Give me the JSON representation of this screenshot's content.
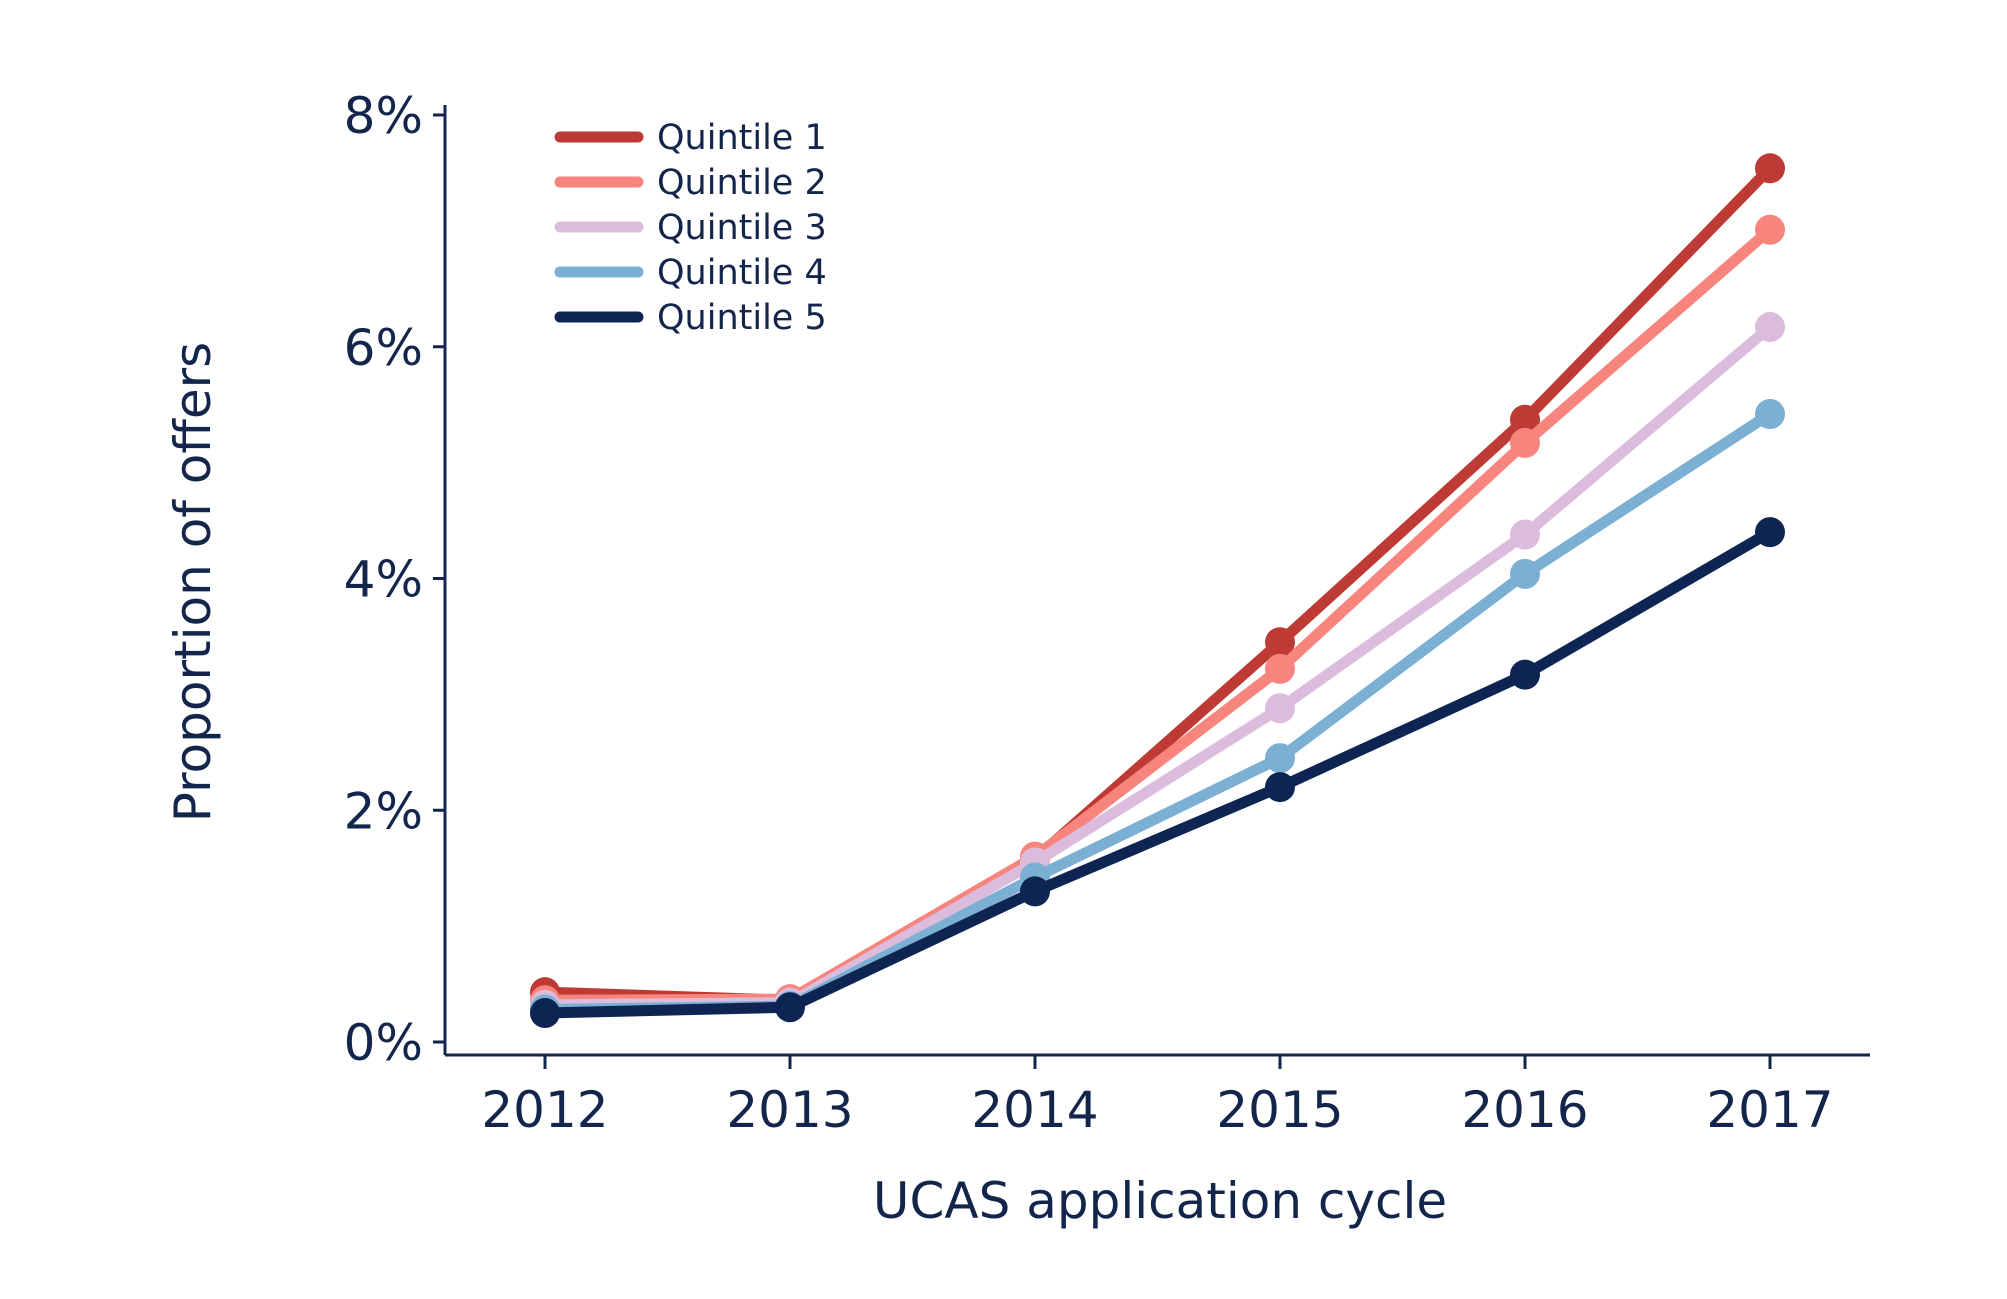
{
  "chart_data": {
    "type": "line",
    "xlabel": "UCAS application cycle",
    "ylabel": "Proportion of offers",
    "x": [
      2012,
      2013,
      2014,
      2015,
      2016,
      2017
    ],
    "xticks": [
      "2012",
      "2013",
      "2014",
      "2015",
      "2016",
      "2017"
    ],
    "ylim": [
      0,
      8
    ],
    "yticks": [
      0,
      2,
      4,
      6,
      8
    ],
    "ytick_labels": [
      "0%",
      "2%",
      "4%",
      "6%",
      "8%"
    ],
    "grid": false,
    "legend_position": "top-left",
    "series": [
      {
        "name": "Quintile 1",
        "color": "#be3a34",
        "values": [
          0.43,
          0.36,
          1.58,
          3.45,
          5.37,
          7.54
        ]
      },
      {
        "name": "Quintile 2",
        "color": "#f8857d",
        "values": [
          0.36,
          0.37,
          1.6,
          3.22,
          5.17,
          7.01
        ]
      },
      {
        "name": "Quintile 3",
        "color": "#dcbcdd",
        "values": [
          0.32,
          0.34,
          1.55,
          2.88,
          4.38,
          6.17
        ]
      },
      {
        "name": "Quintile 4",
        "color": "#7bafd4",
        "values": [
          0.28,
          0.31,
          1.42,
          2.45,
          4.04,
          5.42
        ]
      },
      {
        "name": "Quintile 5",
        "color": "#0e2452",
        "values": [
          0.25,
          0.3,
          1.3,
          2.2,
          3.17,
          4.4
        ]
      }
    ]
  }
}
